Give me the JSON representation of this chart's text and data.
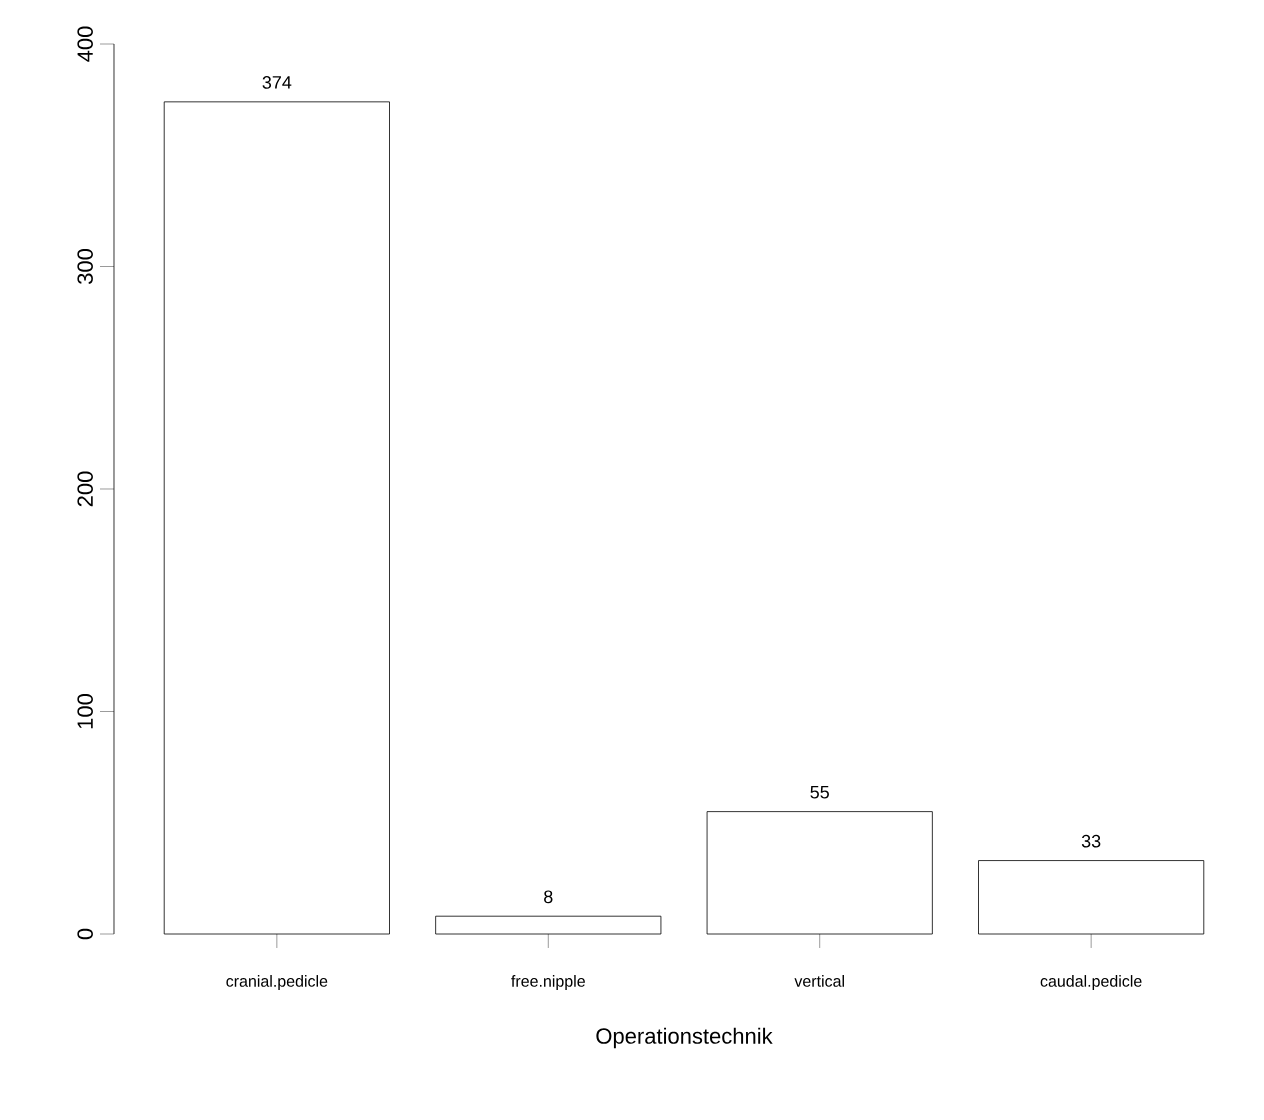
{
  "chart_data": {
    "type": "bar",
    "xlabel": "Operationstechnik",
    "categories": [
      "cranial.pedicle",
      "free.nipple",
      "vertical",
      "caudal.pedicle"
    ],
    "values": [
      374,
      8,
      55,
      33
    ],
    "color": "#ffffff",
    "ylim": [
      0,
      400
    ],
    "yticks": [
      0,
      100,
      200,
      300,
      400
    ],
    "data_labels": true
  }
}
